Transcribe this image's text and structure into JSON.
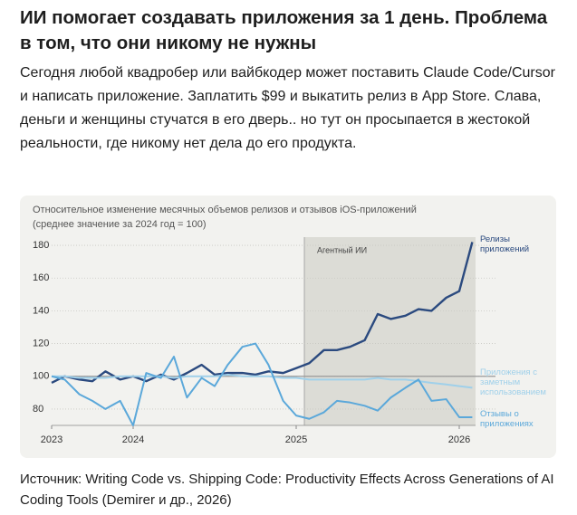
{
  "header": {
    "title": "ИИ помогает создавать приложения за 1 день. Проблема в том, что они никому не нужны"
  },
  "body": {
    "text": "Сегодня любой квадробер или вайбкодер может поставить Claude Code/Cursor и написать приложение. Заплатить $99 и выкатить релиз в App Store. Слава, деньги и женщины стучатся в его дверь.. но тут он просыпается в жестокой реальности, где никому нет дела до его продукта."
  },
  "chart_data": {
    "type": "line",
    "title": "Относительное изменение месячных объемов релизов и отзывов iOS-приложений",
    "subtitle": "(среднее значение за 2024 год = 100)",
    "shaded_region": {
      "label": "Агентный ИИ",
      "x": [
        2025.05,
        2026.1
      ]
    },
    "reference_line": 100,
    "x": [
      2023.5,
      2023.58,
      2023.67,
      2023.75,
      2023.83,
      2023.92,
      2024,
      2024.08,
      2024.17,
      2024.25,
      2024.33,
      2024.42,
      2024.5,
      2024.58,
      2024.67,
      2024.75,
      2024.83,
      2024.92,
      2025,
      2025.08,
      2025.17,
      2025.25,
      2025.33,
      2025.42,
      2025.5,
      2025.58,
      2025.67,
      2025.75,
      2025.83,
      2025.92,
      2026,
      2026.08
    ],
    "xlim": [
      2023.5,
      2026.1
    ],
    "xticks": [
      {
        "value": 2023.5,
        "label": "2023"
      },
      2024,
      2025,
      2026
    ],
    "ylim": [
      70,
      185
    ],
    "yticks": [
      80,
      100,
      120,
      140,
      160,
      180
    ],
    "grid": true,
    "series": [
      {
        "name": "Релизы приложений",
        "color": "#2b4a7f",
        "values": [
          96,
          100,
          98,
          97,
          103,
          98,
          100,
          97,
          101,
          98,
          102,
          107,
          101,
          102,
          102,
          101,
          103,
          102,
          105,
          108,
          116,
          116,
          118,
          122,
          138,
          135,
          137,
          141,
          140,
          148,
          152,
          182
        ]
      },
      {
        "name": "Приложения с заметным использованием",
        "color": "#9fd0ea",
        "values": [
          100,
          100,
          99,
          99,
          99,
          100,
          100,
          100,
          100,
          99,
          100,
          100,
          100,
          101,
          100,
          100,
          100,
          99,
          99,
          98,
          98,
          98,
          98,
          98,
          99,
          98,
          98,
          97,
          96,
          95,
          94,
          93
        ]
      },
      {
        "name": "Отзывы о приложениях",
        "color": "#5ba8da",
        "values": [
          100,
          98,
          89,
          85,
          80,
          85,
          70,
          102,
          99,
          112,
          87,
          99,
          94,
          107,
          118,
          120,
          107,
          85,
          76,
          74,
          78,
          85,
          84,
          82,
          79,
          87,
          93,
          98,
          85,
          86,
          75,
          75
        ]
      }
    ]
  },
  "source": {
    "text": "Источник: Writing Code vs. Shipping Code: Productivity Effects Across Generations of AI Coding Tools (Demirer и др., 2026)"
  }
}
